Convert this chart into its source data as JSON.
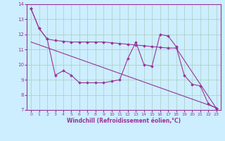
{
  "xlabel": "Windchill (Refroidissement éolien,°C)",
  "background_color": "#cceeff",
  "line_color": "#993399",
  "grid_color": "#aaccbb",
  "xlim": [
    -0.5,
    23.5
  ],
  "ylim": [
    7,
    14
  ],
  "xticks": [
    0,
    1,
    2,
    3,
    4,
    5,
    6,
    7,
    8,
    9,
    10,
    11,
    12,
    13,
    14,
    15,
    16,
    17,
    18,
    19,
    20,
    21,
    22,
    23
  ],
  "yticks": [
    7,
    8,
    9,
    10,
    11,
    12,
    13,
    14
  ],
  "series1_x": [
    0,
    1,
    2,
    3,
    4,
    5,
    6,
    7,
    8,
    9,
    10,
    11,
    12,
    13,
    14,
    15,
    16,
    17,
    18,
    19,
    20,
    21,
    22,
    23
  ],
  "series1_y": [
    13.7,
    12.4,
    11.7,
    9.3,
    9.6,
    9.3,
    8.8,
    8.8,
    8.8,
    8.8,
    8.9,
    9.0,
    10.4,
    11.5,
    10.0,
    9.9,
    12.0,
    11.9,
    11.2,
    9.3,
    8.7,
    8.6,
    7.4,
    7.1
  ],
  "series2_x": [
    0,
    1,
    2,
    3,
    4,
    5,
    6,
    7,
    8,
    9,
    10,
    11,
    12,
    13,
    14,
    15,
    16,
    17,
    18,
    23
  ],
  "series2_y": [
    13.7,
    12.4,
    11.7,
    11.6,
    11.55,
    11.5,
    11.5,
    11.5,
    11.5,
    11.5,
    11.45,
    11.4,
    11.35,
    11.3,
    11.25,
    11.2,
    11.15,
    11.1,
    11.1,
    7.1
  ],
  "series3_x": [
    0,
    23
  ],
  "series3_y": [
    11.5,
    7.15
  ]
}
